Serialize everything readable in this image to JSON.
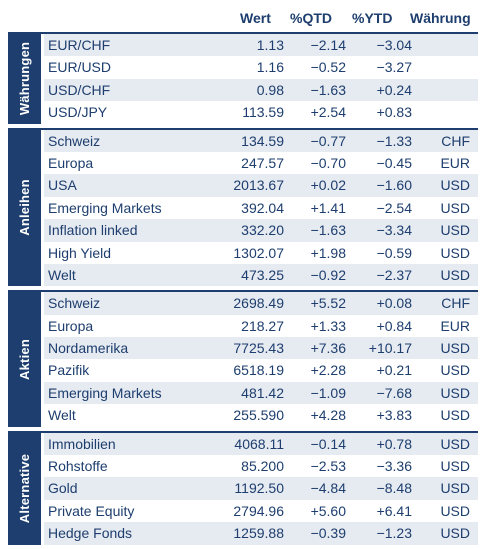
{
  "header": {
    "wert": "Wert",
    "qtd": "%QTD",
    "ytd": "%YTD",
    "waehrung": "Währung"
  },
  "groups": [
    {
      "label": "Währungen",
      "rows": [
        {
          "name": "EUR/CHF",
          "wert": "1.13",
          "qtd": "−2.14",
          "ytd": "−3.04",
          "cur": ""
        },
        {
          "name": "EUR/USD",
          "wert": "1.16",
          "qtd": "−0.52",
          "ytd": "−3.27",
          "cur": ""
        },
        {
          "name": "USD/CHF",
          "wert": "0.98",
          "qtd": "−1.63",
          "ytd": "+0.24",
          "cur": ""
        },
        {
          "name": "USD/JPY",
          "wert": "113.59",
          "qtd": "+2.54",
          "ytd": "+0.83",
          "cur": ""
        }
      ]
    },
    {
      "label": "Anleihen",
      "rows": [
        {
          "name": "Schweiz",
          "wert": "134.59",
          "qtd": "−0.77",
          "ytd": "−1.33",
          "cur": "CHF"
        },
        {
          "name": "Europa",
          "wert": "247.57",
          "qtd": "−0.70",
          "ytd": "−0.45",
          "cur": "EUR"
        },
        {
          "name": "USA",
          "wert": "2013.67",
          "qtd": "+0.02",
          "ytd": "−1.60",
          "cur": "USD"
        },
        {
          "name": "Emerging Markets",
          "wert": "392.04",
          "qtd": "+1.41",
          "ytd": "−2.54",
          "cur": "USD"
        },
        {
          "name": "Inflation linked",
          "wert": "332.20",
          "qtd": "−1.63",
          "ytd": "−3.34",
          "cur": "USD"
        },
        {
          "name": "High Yield",
          "wert": "1302.07",
          "qtd": "+1.98",
          "ytd": "−0.59",
          "cur": "USD"
        },
        {
          "name": "Welt",
          "wert": "473.25",
          "qtd": "−0.92",
          "ytd": "−2.37",
          "cur": "USD"
        }
      ]
    },
    {
      "label": "Aktien",
      "rows": [
        {
          "name": "Schweiz",
          "wert": "2698.49",
          "qtd": "+5.52",
          "ytd": "+0.08",
          "cur": "CHF"
        },
        {
          "name": "Europa",
          "wert": "218.27",
          "qtd": "+1.33",
          "ytd": "+0.84",
          "cur": "EUR"
        },
        {
          "name": "Nordamerika",
          "wert": "7725.43",
          "qtd": "+7.36",
          "ytd": "+10.17",
          "cur": "USD"
        },
        {
          "name": "Pazifik",
          "wert": "6518.19",
          "qtd": "+2.28",
          "ytd": "+0.21",
          "cur": "USD"
        },
        {
          "name": "Emerging Markets",
          "wert": "481.42",
          "qtd": "−1.09",
          "ytd": "−7.68",
          "cur": "USD"
        },
        {
          "name": "Welt",
          "wert": "255.590",
          "qtd": "+4.28",
          "ytd": "+3.83",
          "cur": "USD"
        }
      ]
    },
    {
      "label": "Alternative",
      "rows": [
        {
          "name": "Immobilien",
          "wert": "4068.11",
          "qtd": "−0.14",
          "ytd": "+0.78",
          "cur": "USD"
        },
        {
          "name": "Rohstoffe",
          "wert": "85.200",
          "qtd": "−2.53",
          "ytd": "−3.36",
          "cur": "USD"
        },
        {
          "name": "Gold",
          "wert": "1192.50",
          "qtd": "−4.84",
          "ytd": "−8.48",
          "cur": "USD"
        },
        {
          "name": "Private Equity",
          "wert": "2794.96",
          "qtd": "+5.60",
          "ytd": "+6.41",
          "cur": "USD"
        },
        {
          "name": "Hedge Fonds",
          "wert": "1259.88",
          "qtd": "−0.39",
          "ytd": "−1.23",
          "cur": "USD"
        }
      ]
    }
  ]
}
